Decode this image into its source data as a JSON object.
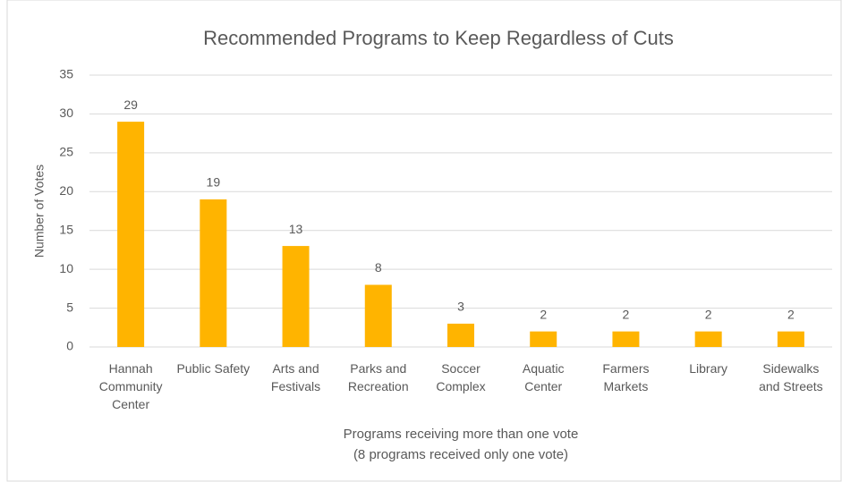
{
  "chart_data": {
    "type": "bar",
    "title": "Recommended Programs to Keep Regardless of Cuts",
    "y_label": "Number of Votes",
    "x_label": "Programs receiving more than one vote",
    "x_label_note": "(8 programs received only one vote)",
    "categories": [
      "Hannah Community Center",
      "Public Safety",
      "Arts and Festivals",
      "Parks and Recreation",
      "Soccer Complex",
      "Aquatic Center",
      "Farmers Markets",
      "Library",
      "Sidewalks and Streets"
    ],
    "values": [
      29,
      19,
      13,
      8,
      3,
      2,
      2,
      2,
      2
    ],
    "color": "#ffb400",
    "ylim": [
      0,
      35
    ],
    "yticks": [
      0,
      5,
      10,
      15,
      20,
      25,
      30,
      35
    ],
    "grid": true
  }
}
